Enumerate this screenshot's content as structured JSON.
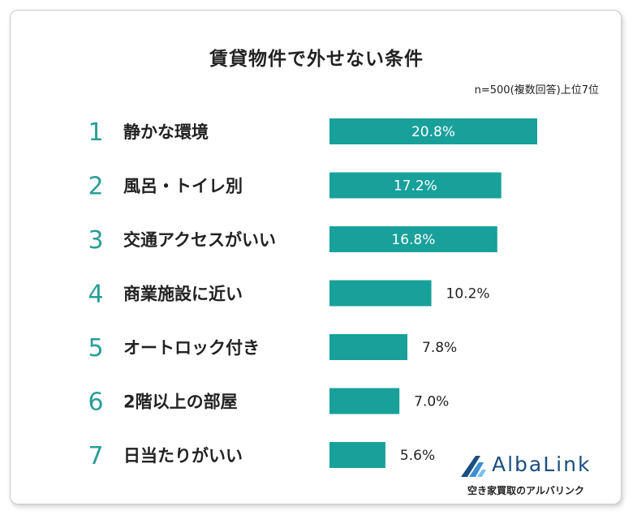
{
  "title": "賃貸物件で外せない条件",
  "note": "n=500(複数回答)上位7位",
  "colors": {
    "bar": "#18a09b",
    "rank": "#2a9d99"
  },
  "chart_data": {
    "type": "bar",
    "orientation": "horizontal",
    "title": "賃貸物件で外せない条件",
    "ranks": [
      "1",
      "2",
      "3",
      "4",
      "5",
      "6",
      "7"
    ],
    "categories": [
      "静かな環境",
      "風呂・トイレ別",
      "交通アクセスがいい",
      "商業施設に近い",
      "オートロック付き",
      "2階以上の部屋",
      "日当たりがいい"
    ],
    "values": [
      20.8,
      17.2,
      16.8,
      10.2,
      7.8,
      7.0,
      5.6
    ],
    "value_labels": [
      "20.8%",
      "17.2%",
      "16.8%",
      "10.2%",
      "7.8%",
      "7.0%",
      "5.6%"
    ],
    "xlim": [
      0,
      20.8
    ]
  },
  "logo": {
    "name": "AlbaLink",
    "tagline": "空き家買取のアルバリンク"
  }
}
